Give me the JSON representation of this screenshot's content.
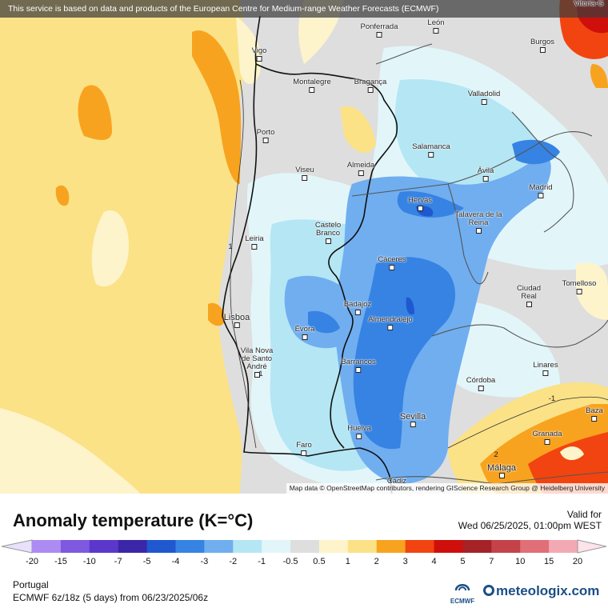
{
  "header": {
    "banner_text": "This service is based on data and products of the European Centre for Medium-range Weather Forecasts (ECMWF)"
  },
  "map": {
    "attribution": "Map data © OpenStreetMap contributors, rendering GIScience Research Group @ Heidelberg University",
    "cities": [
      {
        "name": "Vitoria-G"
      },
      {
        "name": "Ponferrada"
      },
      {
        "name": "León"
      },
      {
        "name": "Burgos"
      },
      {
        "name": "Vigo"
      },
      {
        "name": "Montalegre"
      },
      {
        "name": "Bragança"
      },
      {
        "name": "Valladolid"
      },
      {
        "name": "Porto"
      },
      {
        "name": "Salamanca"
      },
      {
        "name": "Viseu"
      },
      {
        "name": "Almeida"
      },
      {
        "name": "Ávila"
      },
      {
        "name": "Madrid"
      },
      {
        "name": "Hervás"
      },
      {
        "name": "Talavera de la Reina"
      },
      {
        "name": "Castelo Branco"
      },
      {
        "name": "Leiria"
      },
      {
        "name": "Cáceres"
      },
      {
        "name": "Ciudad Real"
      },
      {
        "name": "Tomelloso"
      },
      {
        "name": "Badajoz"
      },
      {
        "name": "Lisboa"
      },
      {
        "name": "Almendralejo"
      },
      {
        "name": "Évora"
      },
      {
        "name": "Vila Nova de Santo André"
      },
      {
        "name": "Barrancos"
      },
      {
        "name": "Linares"
      },
      {
        "name": "Córdoba"
      },
      {
        "name": "Baza"
      },
      {
        "name": "Sevilla"
      },
      {
        "name": "Granada"
      },
      {
        "name": "Huelva"
      },
      {
        "name": "Faro"
      },
      {
        "name": "Málaga"
      },
      {
        "name": "Cádiz"
      }
    ],
    "contour_labels": [
      "1",
      "-1",
      "2",
      "1"
    ]
  },
  "legend": {
    "title": "Anomaly temperature (K=°C)",
    "valid_label": "Valid for",
    "valid_date": "Wed 06/25/2025, 01:00pm WEST",
    "colors": [
      "#ac8cf2",
      "#7e59e0",
      "#5b38cb",
      "#3b26a8",
      "#1f58cf",
      "#3683e3",
      "#70aef0",
      "#b5e6f4",
      "#e2f6fa",
      "#dedede",
      "#fdf4cb",
      "#fbe287",
      "#f8a31f",
      "#f24410",
      "#cf0f0b",
      "#a52226",
      "#c4424a",
      "#e06f77",
      "#f3a9b3"
    ],
    "ticks": [
      "-20",
      "-15",
      "-10",
      "-7",
      "-5",
      "-4",
      "-3",
      "-2",
      "-1",
      "-0.5",
      "0.5",
      "1",
      "2",
      "3",
      "4",
      "5",
      "7",
      "10",
      "15",
      "20"
    ],
    "region": "Portugal",
    "model_run": "ECMWF 6z/18z (5 days) from 06/23/2025/06z",
    "ecmwf_logo_text": "ECMWF",
    "brand": "meteologix.com"
  }
}
